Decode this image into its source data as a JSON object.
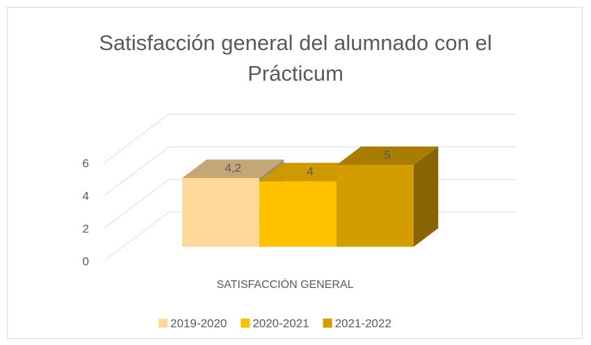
{
  "chart_data": {
    "type": "bar3d",
    "title": "Satisfacción general del alumnado con el Prácticum",
    "categories": [
      "SATISFACCIÓN GENERAL"
    ],
    "series": [
      {
        "name": "2019-2020",
        "color": "#FFD89B",
        "values": [
          4.2
        ],
        "value_labels": [
          "4,2"
        ]
      },
      {
        "name": "2020-2021",
        "color": "#FFC000",
        "values": [
          4
        ]
      },
      {
        "name": "2021-2022",
        "color": "#D39C00",
        "values": [
          5
        ]
      }
    ],
    "ylim": [
      0,
      6
    ],
    "yticks": [
      0,
      2,
      4,
      6
    ],
    "grid": true,
    "legend": "bottom"
  }
}
